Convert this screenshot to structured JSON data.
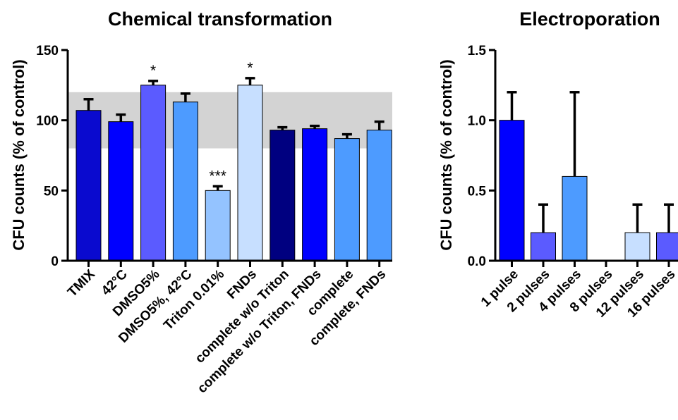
{
  "chart_data": [
    {
      "type": "bar",
      "title": "Chemical transformation",
      "ylabel": "CFU counts  (% of control)",
      "xlabel": "",
      "ylim": [
        0,
        150
      ],
      "yticks": [
        "0",
        "50",
        "100",
        "150"
      ],
      "yticks_values": [
        0,
        50,
        100,
        150
      ],
      "reference_band": [
        80,
        120
      ],
      "reference_band_color": "#d3d3d3",
      "categories": [
        "TMIX",
        "42°C",
        "DMSO5%",
        "DMSO5%, 42°C",
        "Triton 0.01%",
        "FNDs",
        "complete w/o Triton",
        "complete w/o Triton, FNDs",
        "complete",
        "complete, FNDs"
      ],
      "values": [
        107,
        99,
        125,
        113,
        50,
        125,
        93,
        94,
        87,
        93
      ],
      "errors": [
        8,
        5,
        3,
        6,
        3,
        5,
        2,
        2,
        3,
        6
      ],
      "significance": [
        "",
        "",
        "*",
        "",
        "***",
        "*",
        "",
        "",
        "",
        ""
      ],
      "colors": [
        "#0a0acf",
        "#0000ff",
        "#5b5bff",
        "#4d9bff",
        "#94c3ff",
        "#c7dfff",
        "#000080",
        "#0000ff",
        "#4d9bff",
        "#4d9bff"
      ],
      "grid": false
    },
    {
      "type": "bar",
      "title": "Electroporation",
      "ylabel": "CFU counts  (% of control)",
      "xlabel": "",
      "ylim": [
        0,
        1.5
      ],
      "yticks": [
        "0.0",
        "0.5",
        "1.0",
        "1.5"
      ],
      "yticks_values": [
        0,
        0.5,
        1.0,
        1.5
      ],
      "categories": [
        "1 pulse",
        "2 pulses",
        "4 pulses",
        "8 pulses",
        "12 pulses",
        "16 pulses"
      ],
      "values": [
        1.0,
        0.2,
        0.6,
        0.0,
        0.2,
        0.2
      ],
      "errors": [
        0.2,
        0.2,
        0.6,
        0.0,
        0.2,
        0.2
      ],
      "colors": [
        "#0000ff",
        "#5b5bff",
        "#4d9bff",
        "#4d9bff",
        "#c7dfff",
        "#5b5bff"
      ],
      "grid": false
    }
  ]
}
